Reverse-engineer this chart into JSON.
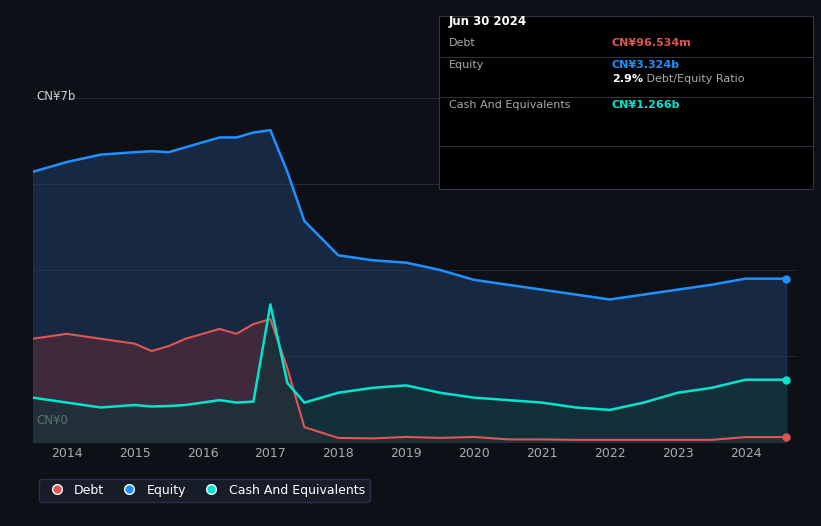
{
  "background_color": "#0d1117",
  "plot_bg_color": "#0d1117",
  "grid_color": "#2a3040",
  "equity_color": "#1e90ff",
  "debt_color": "#e05555",
  "cash_color": "#00e5cc",
  "equity_fill": "#1e3a5f",
  "debt_fill": "#5a2a3a",
  "cash_fill": "#0d3535",
  "y_label_top": "CN¥7b",
  "y_label_bottom": "CN¥0",
  "x_ticks": [
    2014,
    2015,
    2016,
    2017,
    2018,
    2019,
    2020,
    2021,
    2022,
    2023,
    2024
  ],
  "info_box": {
    "date": "Jun 30 2024",
    "debt_label": "Debt",
    "debt_value": "CN¥96.534m",
    "equity_label": "Equity",
    "equity_value": "CN¥3.324b",
    "ratio_bold": "2.9%",
    "ratio_rest": " Debt/Equity Ratio",
    "cash_label": "Cash And Equivalents",
    "cash_value": "CN¥1.266b"
  },
  "equity_data": {
    "x": [
      2013.5,
      2014.0,
      2014.5,
      2015.0,
      2015.25,
      2015.5,
      2015.75,
      2016.0,
      2016.25,
      2016.5,
      2016.75,
      2017.0,
      2017.25,
      2017.5,
      2018.0,
      2018.5,
      2019.0,
      2019.5,
      2020.0,
      2020.5,
      2021.0,
      2021.5,
      2022.0,
      2022.5,
      2023.0,
      2023.5,
      2024.0,
      2024.6
    ],
    "y": [
      5.5,
      5.7,
      5.85,
      5.9,
      5.92,
      5.9,
      6.0,
      6.1,
      6.2,
      6.2,
      6.3,
      6.35,
      5.5,
      4.5,
      3.8,
      3.7,
      3.65,
      3.5,
      3.3,
      3.2,
      3.1,
      3.0,
      2.9,
      3.0,
      3.1,
      3.2,
      3.324,
      3.324
    ]
  },
  "debt_data": {
    "x": [
      2013.5,
      2014.0,
      2014.5,
      2015.0,
      2015.25,
      2015.5,
      2015.75,
      2016.0,
      2016.25,
      2016.5,
      2016.75,
      2017.0,
      2017.25,
      2017.5,
      2018.0,
      2018.5,
      2019.0,
      2019.5,
      2020.0,
      2020.5,
      2021.0,
      2021.5,
      2022.0,
      2022.5,
      2023.0,
      2023.5,
      2024.0,
      2024.6
    ],
    "y": [
      2.1,
      2.2,
      2.1,
      2.0,
      1.85,
      1.95,
      2.1,
      2.2,
      2.3,
      2.2,
      2.4,
      2.5,
      1.5,
      0.3,
      0.08,
      0.07,
      0.1,
      0.08,
      0.1,
      0.05,
      0.05,
      0.04,
      0.04,
      0.04,
      0.04,
      0.04,
      0.097,
      0.097
    ]
  },
  "cash_data": {
    "x": [
      2013.5,
      2014.0,
      2014.5,
      2015.0,
      2015.25,
      2015.5,
      2015.75,
      2016.0,
      2016.25,
      2016.5,
      2016.75,
      2017.0,
      2017.25,
      2017.5,
      2018.0,
      2018.5,
      2019.0,
      2019.5,
      2020.0,
      2020.5,
      2021.0,
      2021.5,
      2022.0,
      2022.5,
      2023.0,
      2023.5,
      2024.0,
      2024.6
    ],
    "y": [
      0.9,
      0.8,
      0.7,
      0.75,
      0.72,
      0.73,
      0.75,
      0.8,
      0.85,
      0.8,
      0.82,
      2.8,
      1.2,
      0.8,
      1.0,
      1.1,
      1.15,
      1.0,
      0.9,
      0.85,
      0.8,
      0.7,
      0.65,
      0.8,
      1.0,
      1.1,
      1.266,
      1.266
    ]
  },
  "ylim": [
    0,
    7.5
  ],
  "xlim": [
    2013.5,
    2024.75
  ],
  "figsize": [
    8.21,
    5.26
  ],
  "dpi": 100
}
